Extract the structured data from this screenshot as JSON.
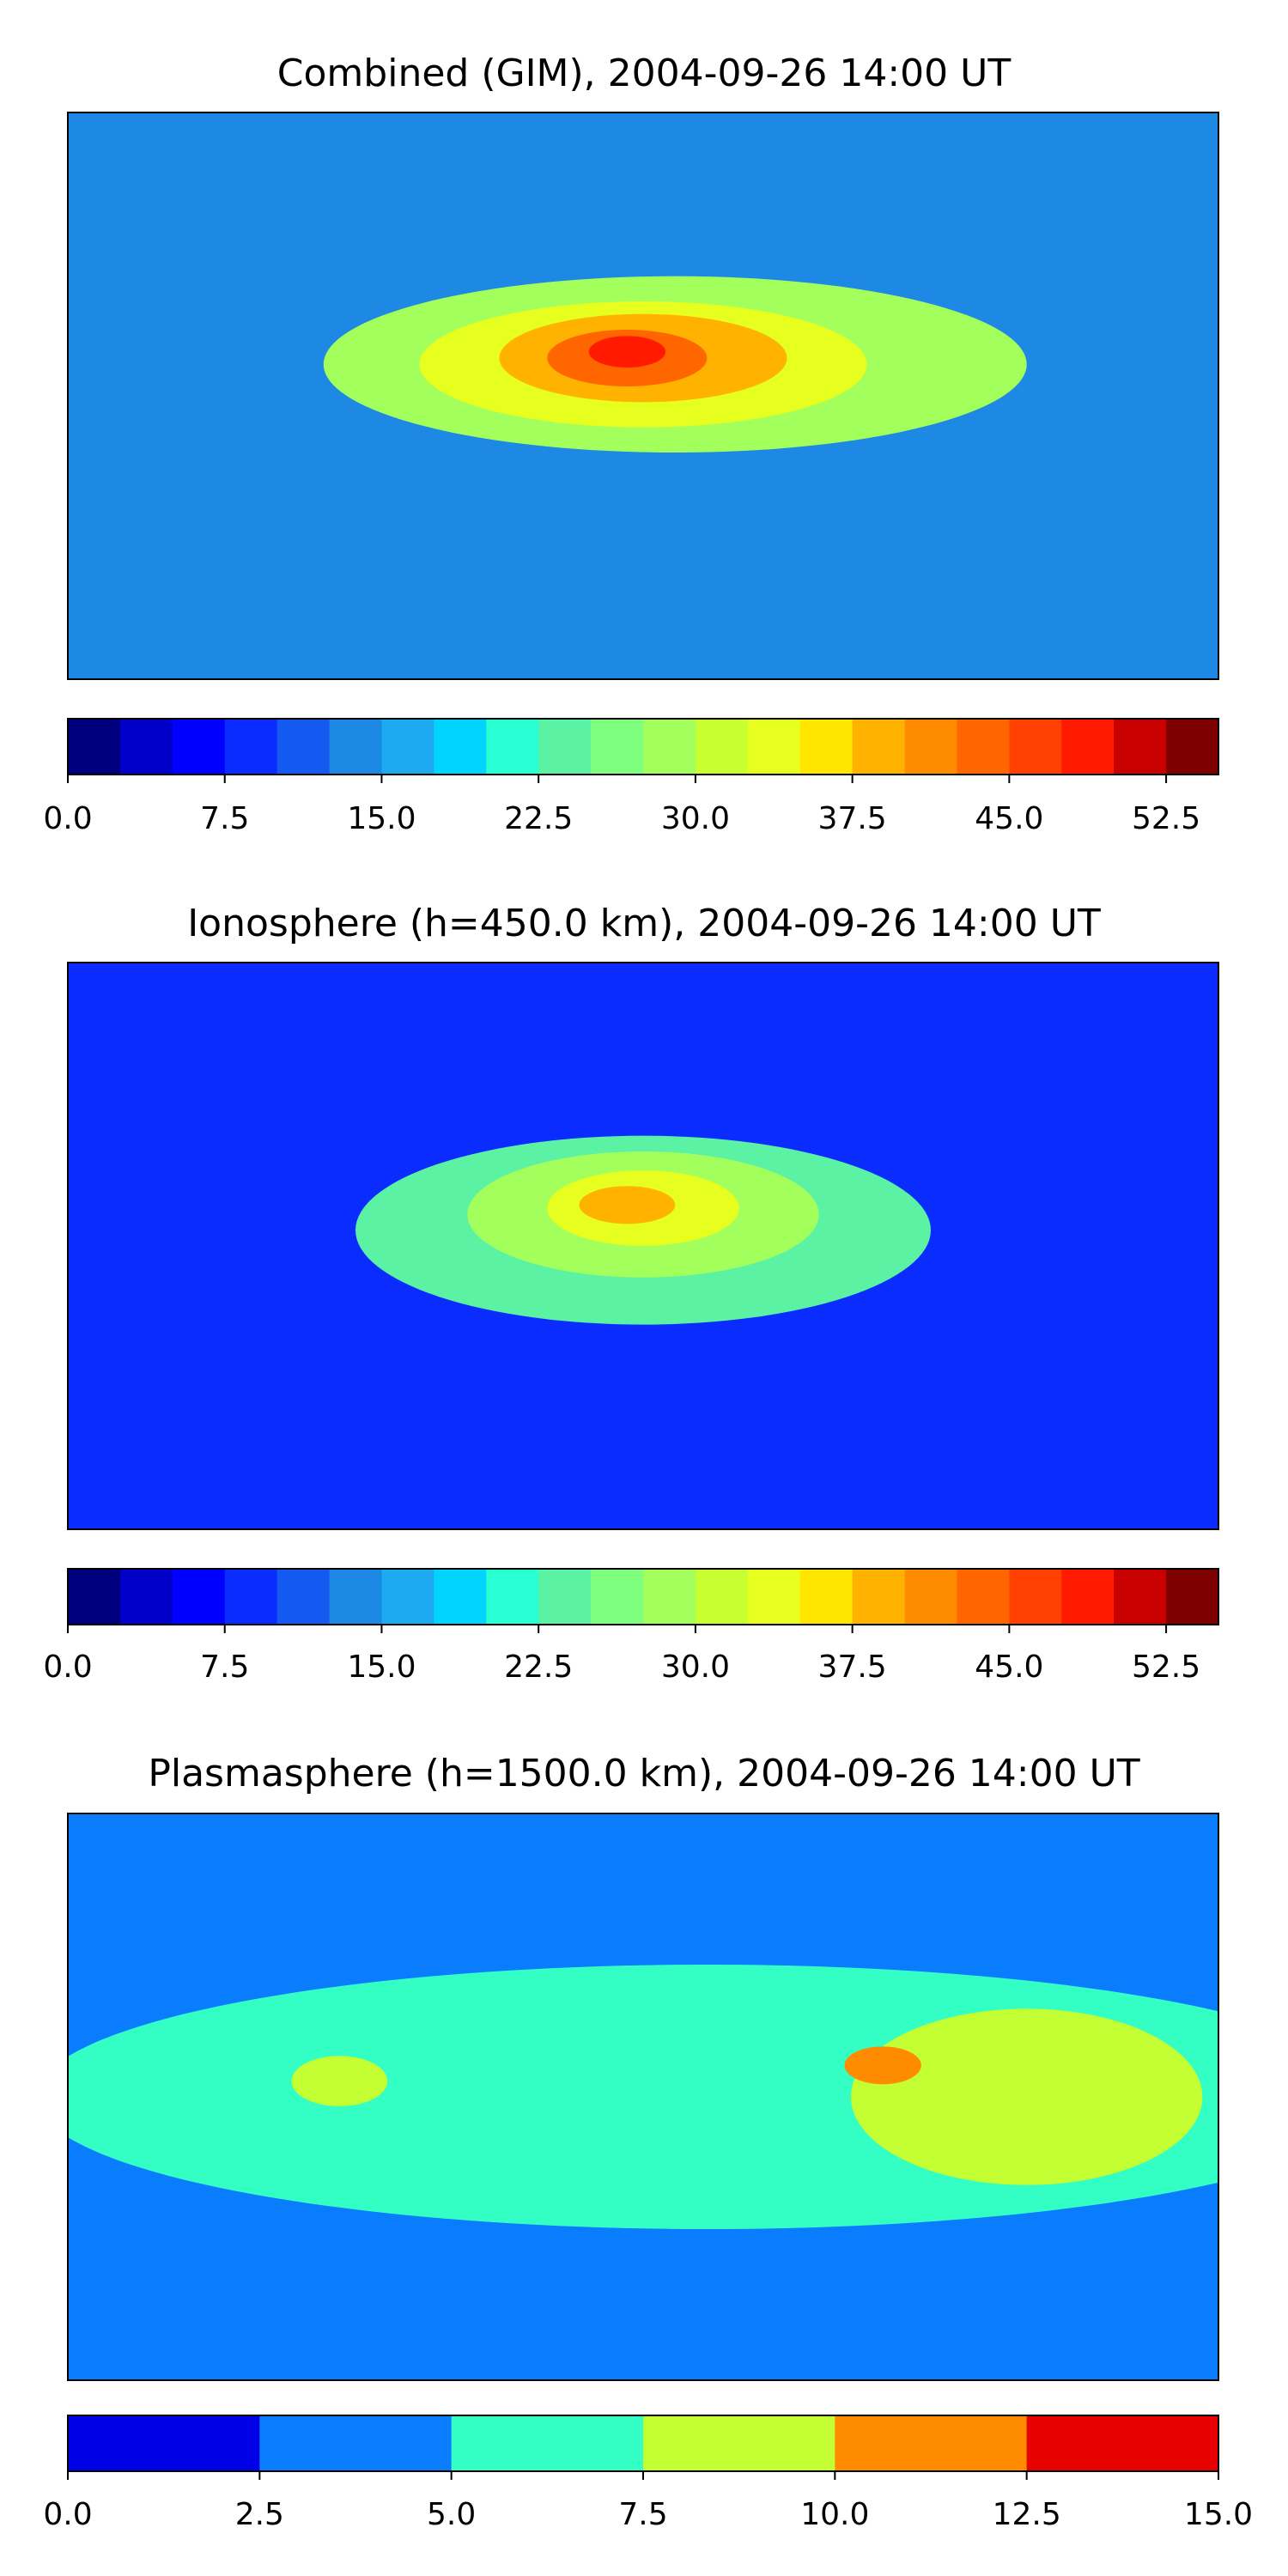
{
  "chart_data": [
    {
      "type": "heatmap",
      "title": "Combined (GIM), 2004-09-26 14:00 UT",
      "xlim": [
        -180,
        180
      ],
      "ylim": [
        -90,
        90
      ],
      "levels": [
        0,
        2.5,
        5,
        7.5,
        10,
        12.5,
        15,
        17.5,
        20,
        22.5,
        25,
        27.5,
        30,
        32.5,
        35,
        37.5,
        40,
        42.5,
        45,
        47.5,
        50,
        52.5,
        55
      ],
      "colorbar_ticks": [
        "0.0",
        "7.5",
        "15.0",
        "22.5",
        "30.0",
        "37.5",
        "45.0",
        "52.5"
      ],
      "colorbar_tick_values": [
        0,
        7.5,
        15,
        22.5,
        30,
        37.5,
        45,
        52.5
      ],
      "background_level": 12.5,
      "features": [
        {
          "lon": 10,
          "lat": 10,
          "level": 27.5,
          "rx": 110,
          "ry": 28
        },
        {
          "lon": 0,
          "lat": 10,
          "level": 32.5,
          "rx": 70,
          "ry": 20
        },
        {
          "lon": 0,
          "lat": 12,
          "level": 37.5,
          "rx": 45,
          "ry": 14
        },
        {
          "lon": -5,
          "lat": 12,
          "level": 42.5,
          "rx": 25,
          "ry": 9
        },
        {
          "lon": -5,
          "lat": 14,
          "level": 47.5,
          "rx": 12,
          "ry": 5
        }
      ]
    },
    {
      "type": "heatmap",
      "title": "Ionosphere  (h=450.0 km), 2004-09-26 14:00 UT",
      "xlim": [
        -180,
        180
      ],
      "ylim": [
        -90,
        90
      ],
      "levels": [
        0,
        2.5,
        5,
        7.5,
        10,
        12.5,
        15,
        17.5,
        20,
        22.5,
        25,
        27.5,
        30,
        32.5,
        35,
        37.5,
        40,
        42.5,
        45,
        47.5,
        50,
        52.5,
        55
      ],
      "colorbar_ticks": [
        "0.0",
        "7.5",
        "15.0",
        "22.5",
        "30.0",
        "37.5",
        "45.0",
        "52.5"
      ],
      "colorbar_tick_values": [
        0,
        7.5,
        15,
        22.5,
        30,
        37.5,
        45,
        52.5
      ],
      "background_level": 7.5,
      "features": [
        {
          "lon": 0,
          "lat": 5,
          "level": 22.5,
          "rx": 90,
          "ry": 30
        },
        {
          "lon": 0,
          "lat": 10,
          "level": 27.5,
          "rx": 55,
          "ry": 20
        },
        {
          "lon": 0,
          "lat": 12,
          "level": 32.5,
          "rx": 30,
          "ry": 12
        },
        {
          "lon": -5,
          "lat": 13,
          "level": 37.5,
          "rx": 15,
          "ry": 6
        }
      ]
    },
    {
      "type": "heatmap",
      "title": "Plasmasphere (h=1500.0 km), 2004-09-26 14:00 UT",
      "xlim": [
        -180,
        180
      ],
      "ylim": [
        -90,
        90
      ],
      "levels": [
        0,
        2.5,
        5,
        7.5,
        10,
        12.5,
        15
      ],
      "colorbar_ticks": [
        "0.0",
        "2.5",
        "5.0",
        "7.5",
        "10.0",
        "12.5",
        "15.0"
      ],
      "colorbar_tick_values": [
        0,
        2.5,
        5,
        7.5,
        10,
        12.5,
        15
      ],
      "background_level": 2.5,
      "features": [
        {
          "lon": 20,
          "lat": 0,
          "level": 5.0,
          "rx": 210,
          "ry": 42
        },
        {
          "lon": 120,
          "lat": 0,
          "level": 7.5,
          "rx": 55,
          "ry": 28
        },
        {
          "lon": -95,
          "lat": 5,
          "level": 7.5,
          "rx": 15,
          "ry": 8
        },
        {
          "lon": 75,
          "lat": 10,
          "level": 10.0,
          "rx": 12,
          "ry": 6
        }
      ]
    }
  ],
  "colors": {
    "jet_22": [
      "#00007f",
      "#0000c8",
      "#0000ff",
      "#0a2cff",
      "#155af0",
      "#1e88e5",
      "#1eaaf0",
      "#00d4ff",
      "#28ffd2",
      "#5cf2a3",
      "#7dff7d",
      "#a3ff5c",
      "#c8ff30",
      "#e6ff1e",
      "#ffe600",
      "#ffb300",
      "#ff8c00",
      "#ff6600",
      "#ff4000",
      "#ff1a00",
      "#c80000",
      "#7f0000"
    ],
    "jet_6": [
      "#0000e6",
      "#0a7dff",
      "#33ffc4",
      "#c4ff33",
      "#ff8c00",
      "#e60000"
    ]
  }
}
